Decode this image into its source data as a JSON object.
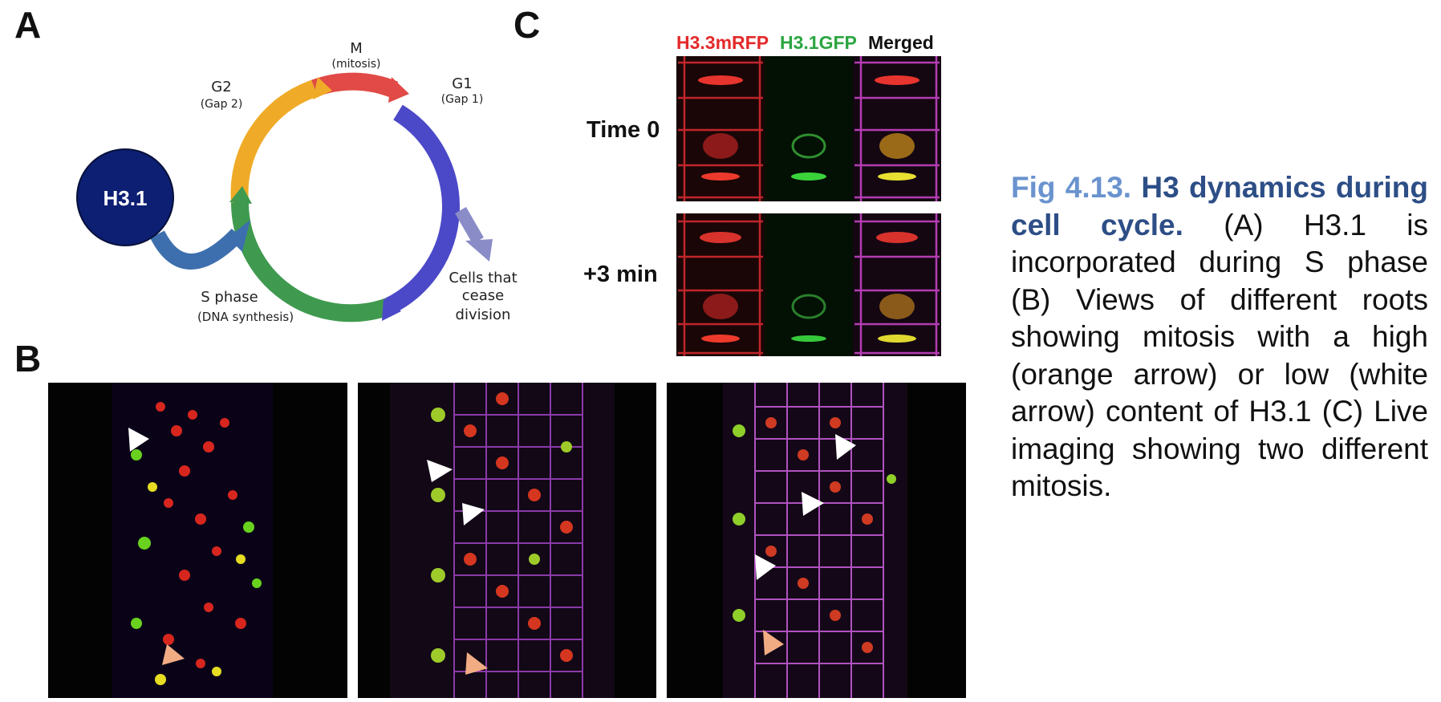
{
  "panels": {
    "a_letter": "A",
    "b_letter": "B",
    "c_letter": "C"
  },
  "cycle": {
    "hub_label": "H3.1",
    "m_label": "M",
    "m_sub": "(mitosis)",
    "g1_label": "G1",
    "g1_sub": "(Gap 1)",
    "g2_label": "G2",
    "g2_sub": "(Gap 2)",
    "s_label": "S phase",
    "s_sub": "(DNA synthesis)",
    "cease_1": "Cells that",
    "cease_2": "cease",
    "cease_3": "division",
    "colors": {
      "mitosis": "#e14a46",
      "g1": "#4b49c8",
      "s": "#3f9a4f",
      "g2": "#efab28",
      "hub": "#0d1f72",
      "hub_arrow": "#3d6fae",
      "cease_arrow": "#8a8cc8"
    }
  },
  "live": {
    "ch1": "H3.3mRFP",
    "ch2": "H3.1GFP",
    "ch3": "Merged",
    "row1": "Time 0",
    "row2": "+3 min",
    "colors": {
      "ch1": "#e32a2a",
      "ch2": "#2aa640",
      "ch3": "#111111"
    }
  },
  "caption": {
    "fig_number": "Fig 4.13.",
    "title": "H3 dynamics during cell cycle.",
    "body": "(A) H3.1 is incorporated during S phase (B) Views of different roots showing mitosis with a high (orange arrow) or low (white arrow) content of H3.1 (C) Live imaging showing two different mitosis."
  },
  "arrows": {
    "high": "#f2ac84",
    "low": "#ffffff"
  }
}
